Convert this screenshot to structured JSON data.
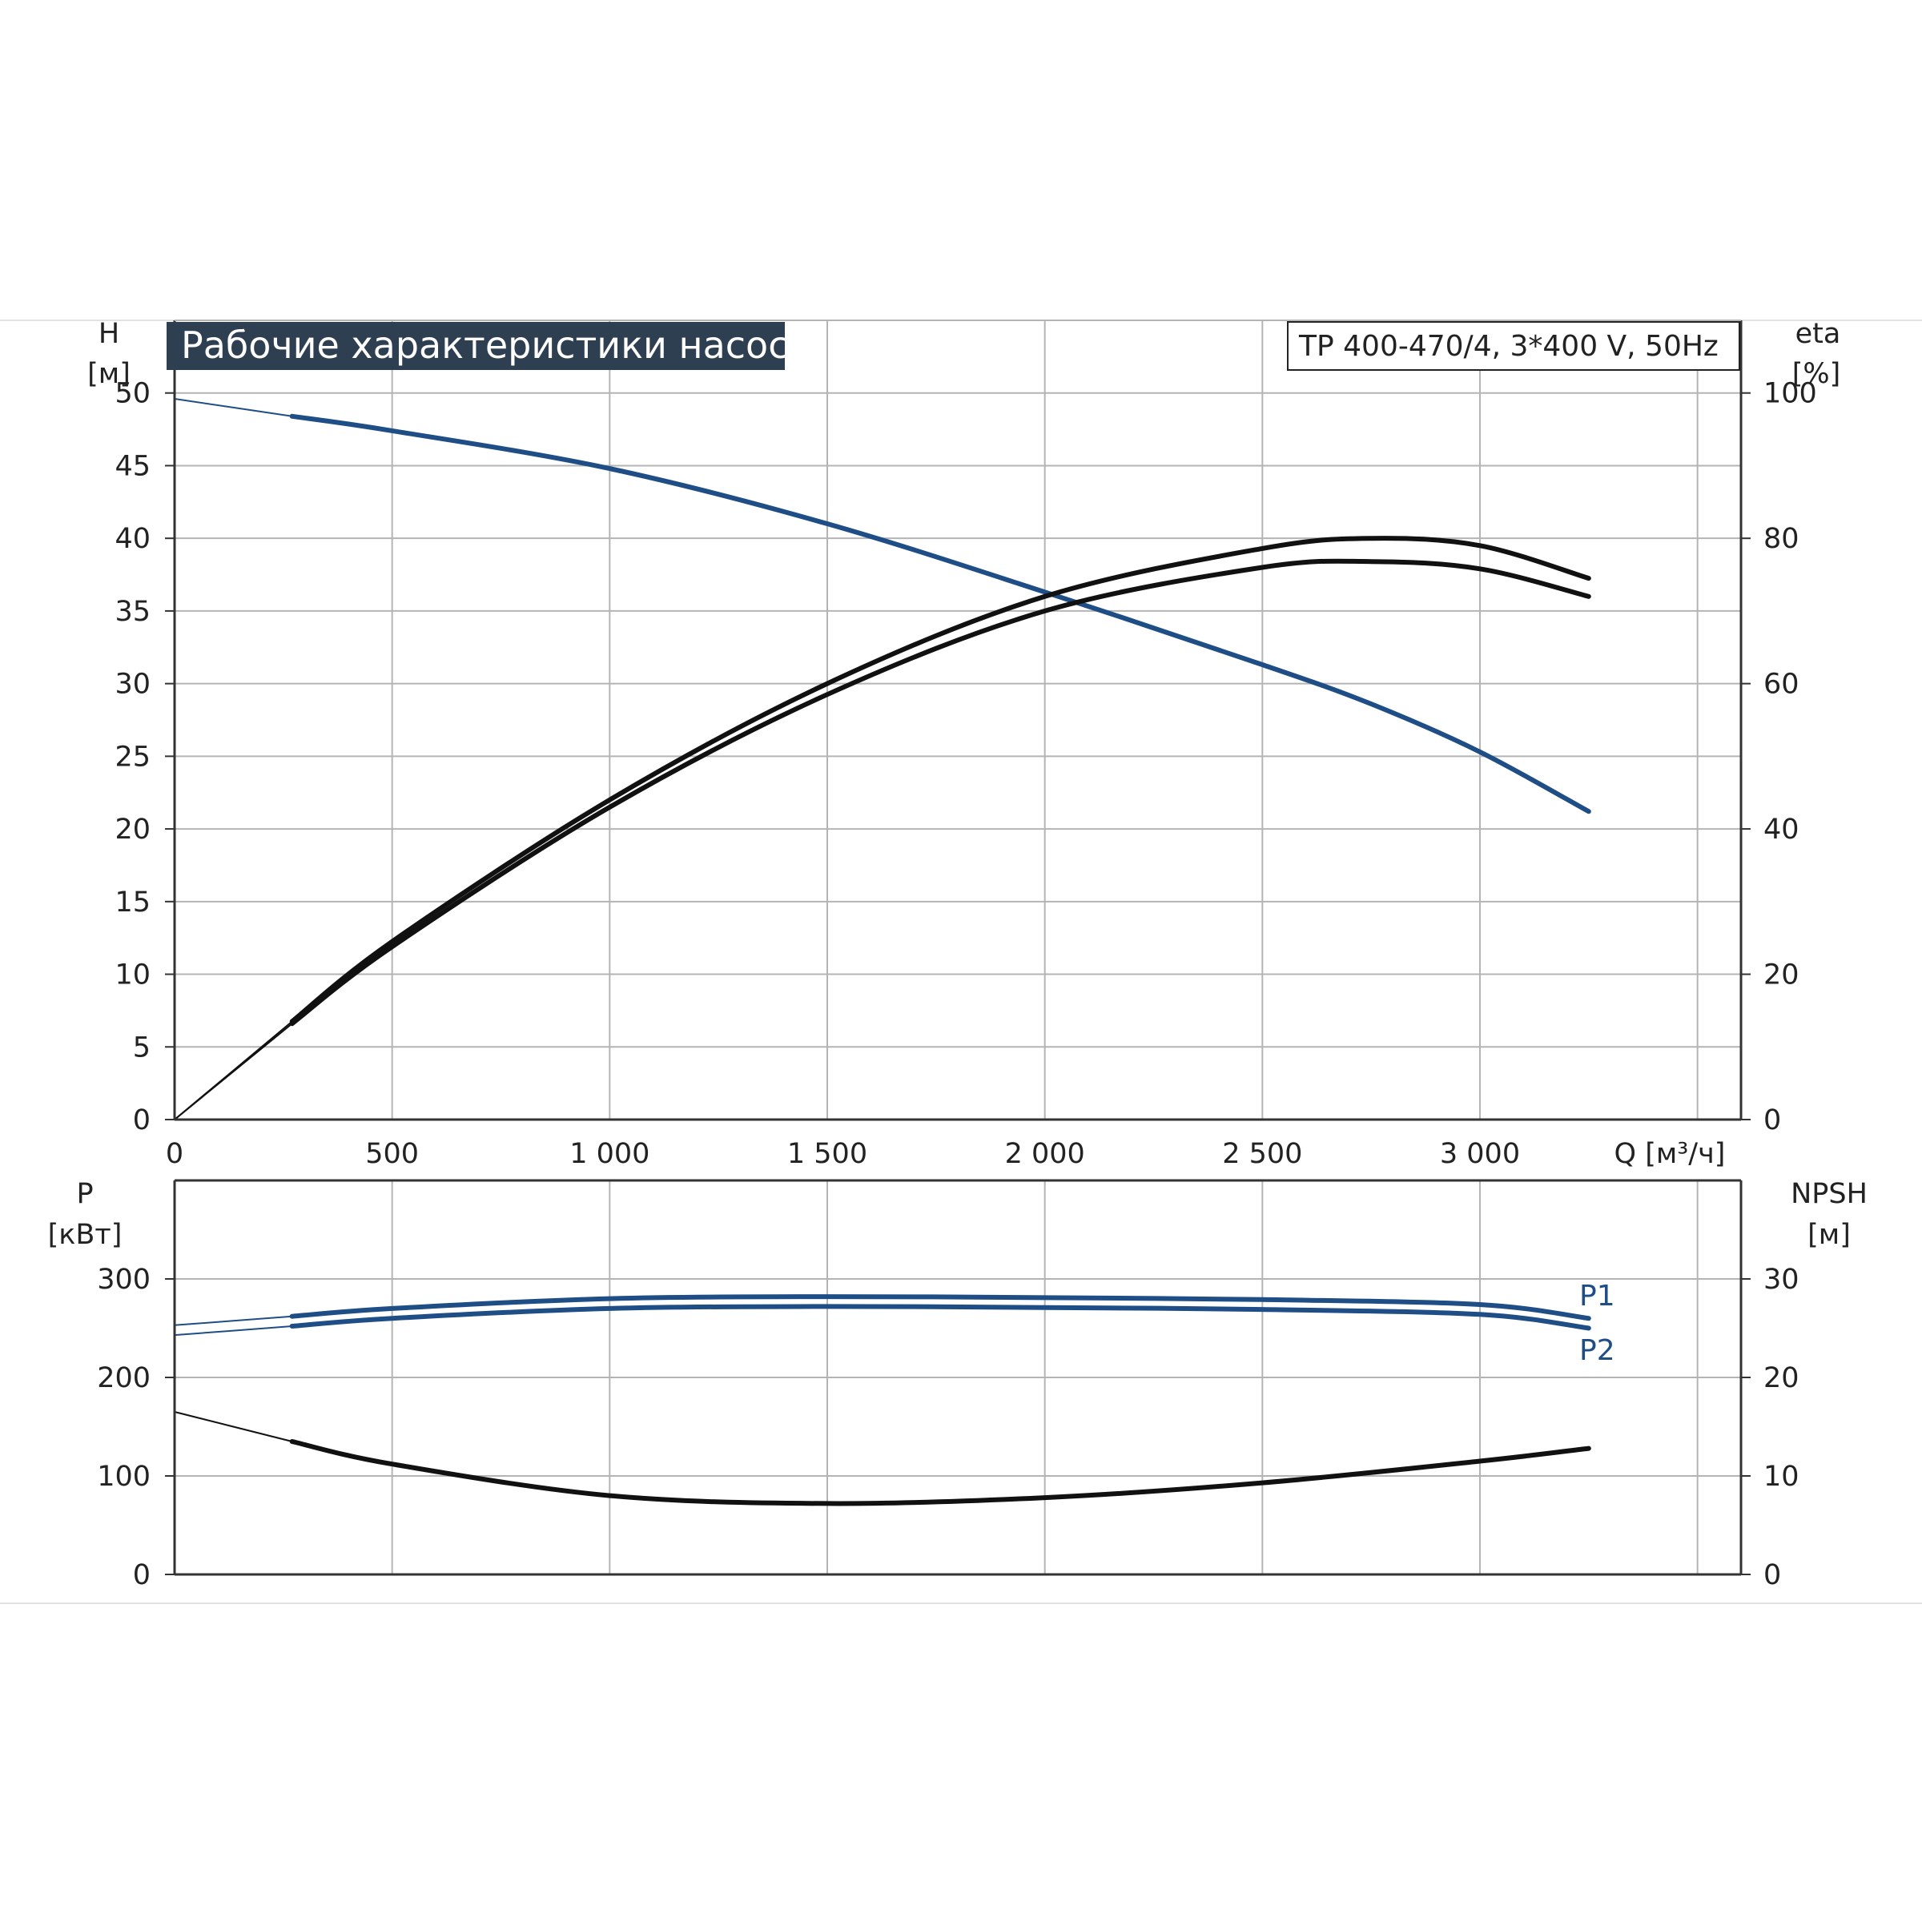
{
  "title": "Рабочие характеристики насоса",
  "model": "TP 400-470/4, 3*400 V, 50Hz",
  "colors": {
    "blue": "#1f4e87",
    "black": "#111111",
    "grid": "#b4b4b4",
    "title_bg": "#2f3f52"
  },
  "chart_data": [
    {
      "type": "line",
      "panel": "upper",
      "x_label": "Q [м³/ч]",
      "x_ticks": [
        "0",
        "500",
        "1 000",
        "1 500",
        "2 000",
        "2 500",
        "3 000"
      ],
      "xlim": [
        0,
        3600
      ],
      "left_axis": {
        "label_top": "H",
        "label_unit": "[м]",
        "ylim": [
          0,
          55
        ],
        "ticks": [
          "0",
          "5",
          "10",
          "15",
          "20",
          "25",
          "30",
          "35",
          "40",
          "45",
          "50"
        ]
      },
      "right_axis": {
        "label_top": "eta",
        "label_unit": "[%]",
        "ylim": [
          0,
          110
        ],
        "ticks": [
          "0",
          "20",
          "40",
          "60",
          "80",
          "100"
        ]
      },
      "series": [
        {
          "axis": "left",
          "color": "blue",
          "x": [
            0,
            270,
            500,
            1000,
            1500,
            2000,
            2500,
            2750,
            3000,
            3250
          ],
          "y": [
            49.6,
            48.4,
            47.4,
            44.8,
            41.0,
            36.3,
            31.3,
            28.6,
            25.3,
            21.2
          ]
        },
        {
          "axis": "right",
          "color": "black",
          "x": [
            0,
            270,
            500,
            1000,
            1500,
            2000,
            2500,
            2750,
            3000,
            3250
          ],
          "y": [
            0,
            13.5,
            24.5,
            44,
            60,
            72,
            78.6,
            80,
            79,
            74.5
          ]
        },
        {
          "axis": "right",
          "color": "black",
          "x": [
            0,
            270,
            500,
            1000,
            1500,
            2000,
            2500,
            2750,
            3000,
            3250
          ],
          "y": [
            0,
            13.2,
            23.8,
            43,
            58.5,
            70,
            76,
            76.8,
            75.8,
            72
          ]
        }
      ]
    },
    {
      "type": "line",
      "panel": "lower",
      "xlim": [
        0,
        3600
      ],
      "left_axis": {
        "label_top": "P",
        "label_unit": "[кВт]",
        "ylim": [
          0,
          400
        ],
        "ticks": [
          "0",
          "100",
          "200",
          "300"
        ]
      },
      "right_axis": {
        "label_top": "NPSH",
        "label_unit": "[м]",
        "ylim": [
          0,
          40
        ],
        "ticks": [
          "0",
          "10",
          "20",
          "30"
        ]
      },
      "series": [
        {
          "name": "P1",
          "axis": "left",
          "color": "blue",
          "x": [
            0,
            270,
            500,
            1000,
            1500,
            2000,
            2500,
            3000,
            3250
          ],
          "y": [
            253,
            262,
            270,
            280,
            282,
            281,
            279,
            274,
            260
          ]
        },
        {
          "name": "P2",
          "axis": "left",
          "color": "blue",
          "x": [
            0,
            270,
            500,
            1000,
            1500,
            2000,
            2500,
            3000,
            3250
          ],
          "y": [
            243,
            252,
            260,
            270,
            272,
            271,
            269,
            264,
            250
          ]
        },
        {
          "axis": "right",
          "color": "black",
          "x": [
            0,
            270,
            500,
            1000,
            1500,
            2000,
            2500,
            3000,
            3250
          ],
          "y": [
            16.5,
            13.5,
            11.2,
            8.0,
            7.2,
            7.8,
            9.3,
            11.5,
            12.8
          ]
        }
      ]
    }
  ]
}
